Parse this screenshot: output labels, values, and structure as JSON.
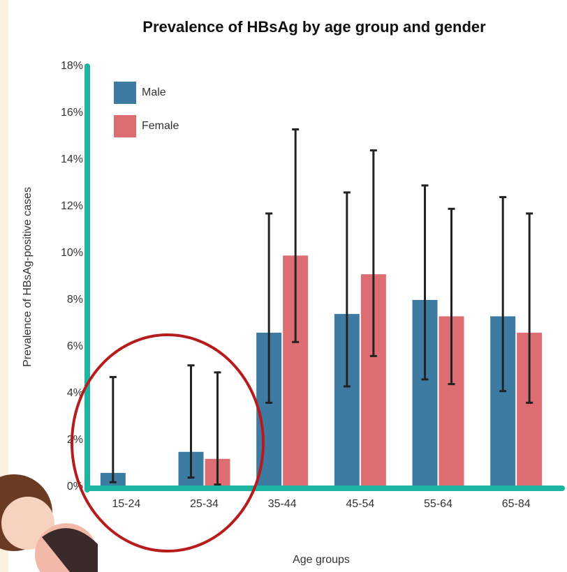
{
  "chart_data": {
    "type": "bar",
    "title": "Prevalence of HBsAg by age group and gender",
    "x_label": "Age groups",
    "y_label": "Prevalence of HBsAg-positive cases",
    "categories": [
      "15-24",
      "25-34",
      "35-44",
      "45-54",
      "55-64",
      "65-84"
    ],
    "series": [
      {
        "name": "Male",
        "color": "#3e7ba3",
        "values": [
          0.6,
          1.5,
          6.6,
          7.4,
          8.0,
          7.3
        ],
        "ci_low": [
          0.2,
          0.4,
          3.6,
          4.3,
          4.6,
          4.1
        ],
        "ci_high": [
          4.7,
          5.2,
          11.7,
          12.6,
          12.9,
          12.4
        ]
      },
      {
        "name": "Female",
        "color": "#de6c73",
        "values": [
          0,
          1.2,
          9.9,
          9.1,
          7.3,
          6.6
        ],
        "ci_low": [
          null,
          0.1,
          6.2,
          5.6,
          4.4,
          3.6
        ],
        "ci_high": [
          null,
          4.9,
          15.3,
          14.4,
          11.9,
          11.7
        ]
      }
    ],
    "ylim": [
      0,
      18
    ],
    "yticks": [
      {
        "value": 0,
        "label": "0%"
      },
      {
        "value": 2,
        "label": "2%"
      },
      {
        "value": 4,
        "label": "4%"
      },
      {
        "value": 6,
        "label": "6%"
      },
      {
        "value": 8,
        "label": "8%"
      },
      {
        "value": 10,
        "label": "10%"
      },
      {
        "value": 12,
        "label": "12%"
      },
      {
        "value": 14,
        "label": "14%"
      },
      {
        "value": 16,
        "label": "16%"
      },
      {
        "value": 18,
        "label": "18%"
      }
    ],
    "legend": "top-left",
    "axis_color": "#1bb5a2"
  }
}
